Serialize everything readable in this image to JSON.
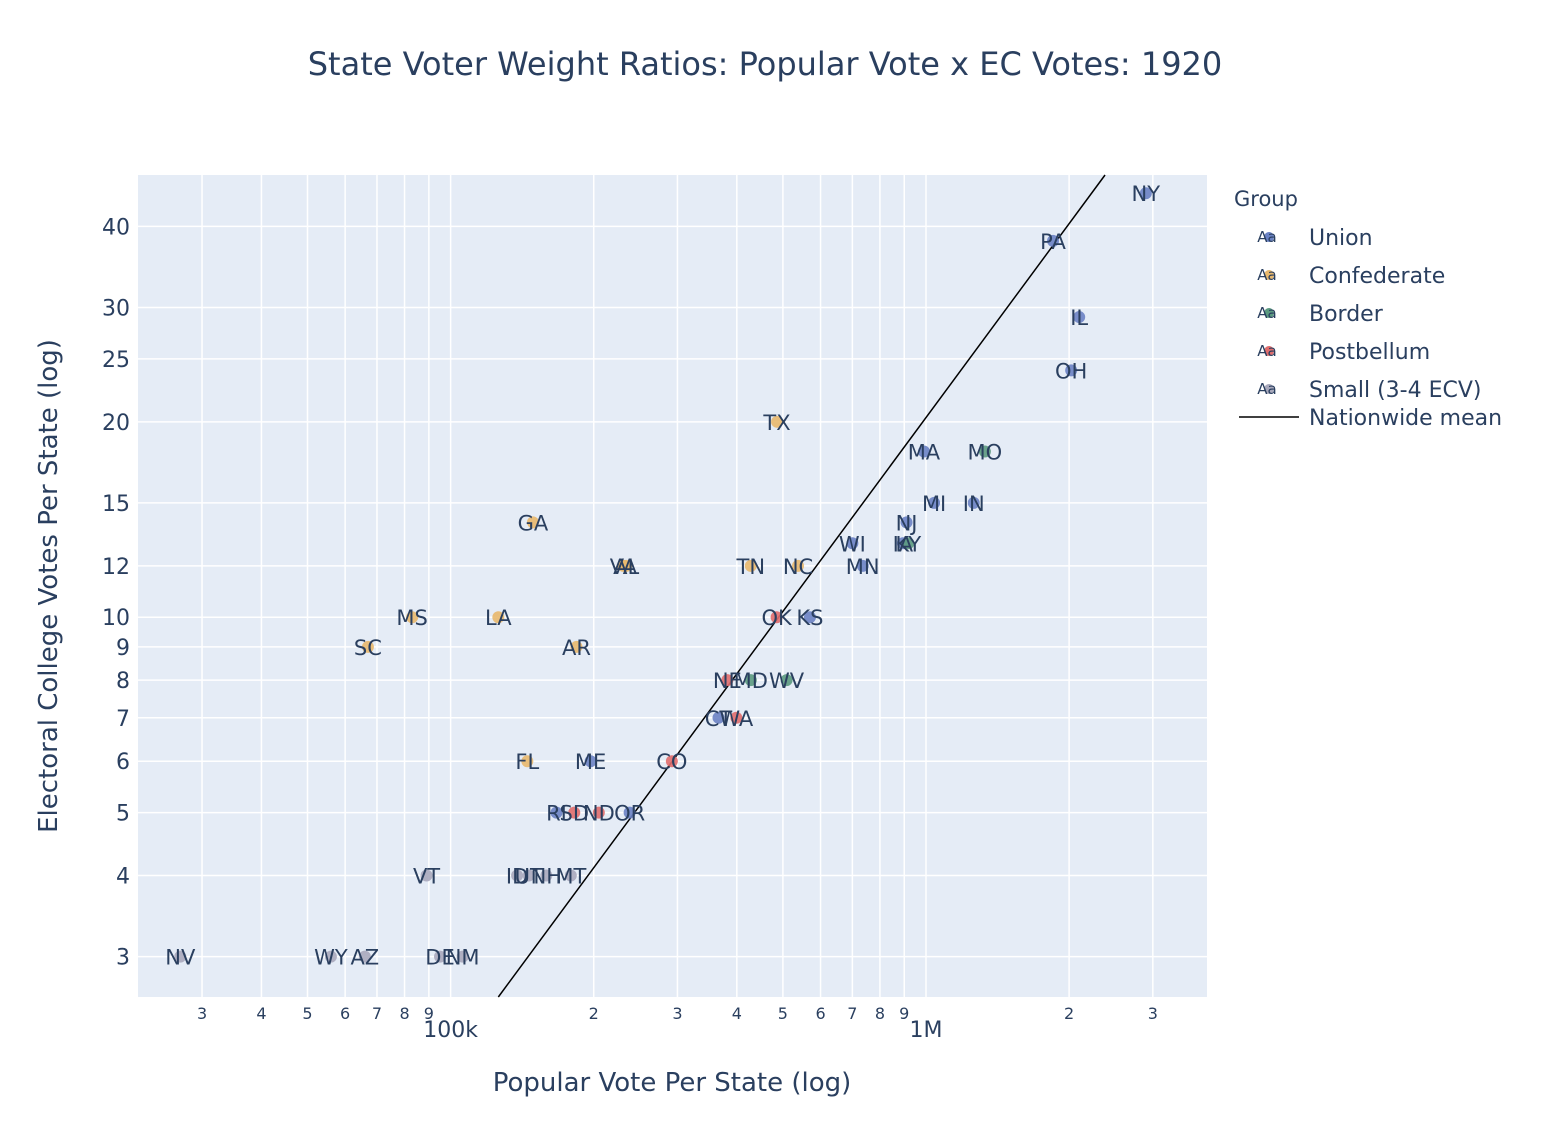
{
  "chart_data": {
    "type": "scatter",
    "title": "State Voter Weight Ratios: Popular Vote x EC Votes: 1920",
    "xlabel": "Popular Vote Per State (log)",
    "ylabel": "Electoral College Votes Per State (log)",
    "x_scale": "log",
    "y_scale": "log",
    "xlim": [
      22000,
      3900000
    ],
    "ylim": [
      2.6,
      48
    ],
    "x_ticks_major": [
      {
        "value": 100000,
        "label": "100k"
      },
      {
        "value": 1000000,
        "label": "1M"
      }
    ],
    "x_ticks_minor": [
      {
        "value": 30000,
        "label": "3"
      },
      {
        "value": 40000,
        "label": "4"
      },
      {
        "value": 50000,
        "label": "5"
      },
      {
        "value": 60000,
        "label": "6"
      },
      {
        "value": 70000,
        "label": "7"
      },
      {
        "value": 80000,
        "label": "8"
      },
      {
        "value": 90000,
        "label": "9"
      },
      {
        "value": 200000,
        "label": "2"
      },
      {
        "value": 300000,
        "label": "3"
      },
      {
        "value": 400000,
        "label": "4"
      },
      {
        "value": 500000,
        "label": "5"
      },
      {
        "value": 600000,
        "label": "6"
      },
      {
        "value": 700000,
        "label": "7"
      },
      {
        "value": 800000,
        "label": "8"
      },
      {
        "value": 900000,
        "label": "9"
      },
      {
        "value": 2000000,
        "label": "2"
      },
      {
        "value": 3000000,
        "label": "3"
      }
    ],
    "y_ticks": [
      {
        "value": 3,
        "label": "3"
      },
      {
        "value": 4,
        "label": "4"
      },
      {
        "value": 5,
        "label": "5"
      },
      {
        "value": 6,
        "label": "6"
      },
      {
        "value": 7,
        "label": "7"
      },
      {
        "value": 8,
        "label": "8"
      },
      {
        "value": 9,
        "label": "9"
      },
      {
        "value": 10,
        "label": "10"
      },
      {
        "value": 12,
        "label": "12"
      },
      {
        "value": 15,
        "label": "15"
      },
      {
        "value": 20,
        "label": "20"
      },
      {
        "value": 25,
        "label": "25"
      },
      {
        "value": 30,
        "label": "30"
      },
      {
        "value": 40,
        "label": "40"
      }
    ],
    "grid": true,
    "legend": {
      "title": "Group",
      "position": "right",
      "symbol_text": "Aa",
      "line_entry": "Nationwide mean"
    },
    "series": [
      {
        "name": "Union",
        "color": "#6a82c4",
        "points": [
          {
            "label": "NY",
            "x": 2900000,
            "y": 45
          },
          {
            "label": "PA",
            "x": 1850000,
            "y": 38
          },
          {
            "label": "IL",
            "x": 2100000,
            "y": 29
          },
          {
            "label": "OH",
            "x": 2020000,
            "y": 24
          },
          {
            "label": "MA",
            "x": 990000,
            "y": 18
          },
          {
            "label": "MI",
            "x": 1040000,
            "y": 15
          },
          {
            "label": "IN",
            "x": 1260000,
            "y": 15
          },
          {
            "label": "NJ",
            "x": 910000,
            "y": 14
          },
          {
            "label": "WI",
            "x": 700000,
            "y": 13
          },
          {
            "label": "IA",
            "x": 894000,
            "y": 13
          },
          {
            "label": "MN",
            "x": 736000,
            "y": 12
          },
          {
            "label": "KS",
            "x": 570000,
            "y": 10
          },
          {
            "label": "CT",
            "x": 366000,
            "y": 7
          },
          {
            "label": "ME",
            "x": 197000,
            "y": 6
          },
          {
            "label": "OR",
            "x": 238000,
            "y": 5
          },
          {
            "label": "RI",
            "x": 167000,
            "y": 5
          }
        ]
      },
      {
        "name": "Confederate",
        "color": "#e8b86d",
        "points": [
          {
            "label": "TX",
            "x": 486000,
            "y": 20
          },
          {
            "label": "GA",
            "x": 149000,
            "y": 14
          },
          {
            "label": "TN",
            "x": 428000,
            "y": 12
          },
          {
            "label": "NC",
            "x": 538000,
            "y": 12
          },
          {
            "label": "VA",
            "x": 231000,
            "y": 12
          },
          {
            "label": "AL",
            "x": 234000,
            "y": 12
          },
          {
            "label": "MS",
            "x": 83000,
            "y": 10
          },
          {
            "label": "LA",
            "x": 126000,
            "y": 10
          },
          {
            "label": "SC",
            "x": 67000,
            "y": 9
          },
          {
            "label": "AR",
            "x": 184000,
            "y": 9
          },
          {
            "label": "FL",
            "x": 145000,
            "y": 6
          }
        ]
      },
      {
        "name": "Border",
        "color": "#5b9a80",
        "points": [
          {
            "label": "MO",
            "x": 1330000,
            "y": 18
          },
          {
            "label": "KY",
            "x": 918000,
            "y": 13
          },
          {
            "label": "MD",
            "x": 428000,
            "y": 8
          },
          {
            "label": "WV",
            "x": 509000,
            "y": 8
          }
        ]
      },
      {
        "name": "Postbellum",
        "color": "#e06d6d",
        "points": [
          {
            "label": "OK",
            "x": 485000,
            "y": 10
          },
          {
            "label": "NE",
            "x": 382000,
            "y": 8
          },
          {
            "label": "WA",
            "x": 399000,
            "y": 7
          },
          {
            "label": "CO",
            "x": 292000,
            "y": 6
          },
          {
            "label": "SD",
            "x": 182000,
            "y": 5
          },
          {
            "label": "ND",
            "x": 205000,
            "y": 5
          }
        ]
      },
      {
        "name": "Small (3-4 ECV)",
        "color": "#a9a9bc",
        "points": [
          {
            "label": "VT",
            "x": 89000,
            "y": 4
          },
          {
            "label": "ID",
            "x": 138000,
            "y": 4
          },
          {
            "label": "UT",
            "x": 146000,
            "y": 4
          },
          {
            "label": "NH",
            "x": 159000,
            "y": 4
          },
          {
            "label": "MT",
            "x": 179000,
            "y": 4
          },
          {
            "label": "NV",
            "x": 27000,
            "y": 3
          },
          {
            "label": "WY",
            "x": 56000,
            "y": 3
          },
          {
            "label": "AZ",
            "x": 66000,
            "y": 3
          },
          {
            "label": "DE",
            "x": 95000,
            "y": 3
          },
          {
            "label": "NM",
            "x": 106000,
            "y": 3
          }
        ]
      }
    ],
    "reference_line": {
      "name": "Nationwide mean",
      "color": "#000000",
      "points": [
        {
          "x": 126000,
          "y": 2.6
        },
        {
          "x": 2380000,
          "y": 48
        }
      ]
    }
  },
  "colors": {
    "plot_bg": "#e5ecf6",
    "grid": "#ffffff",
    "text": "#2a3f5f"
  }
}
